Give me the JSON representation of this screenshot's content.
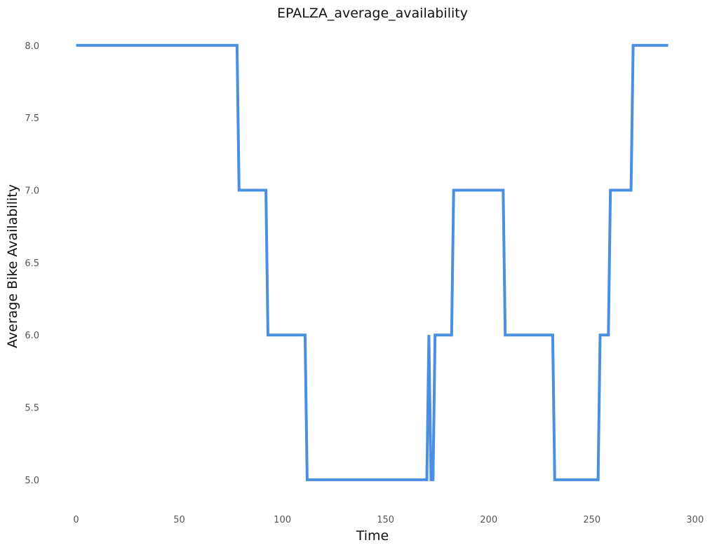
{
  "chart_data": {
    "type": "line",
    "title": "EPALZA_average_availability",
    "xlabel": "Time",
    "ylabel": "Average Bike Availability",
    "xlim": [
      -9,
      297
    ],
    "ylim": [
      4.84,
      8.12
    ],
    "xticks": [
      0,
      50,
      100,
      150,
      200,
      250,
      300
    ],
    "yticks": [
      5.0,
      5.5,
      6.0,
      6.5,
      7.0,
      7.5,
      8.0
    ],
    "grid": false,
    "line_color": "#4a8fe0",
    "series": [
      {
        "x": [
          0,
          78,
          79,
          92,
          93,
          111,
          112,
          170,
          171,
          172,
          173,
          174,
          182,
          183,
          207,
          208,
          231,
          232,
          253,
          254,
          258,
          259,
          269,
          270,
          287
        ],
        "y": [
          8,
          8,
          7,
          7,
          6,
          6,
          5,
          5,
          6,
          5,
          5,
          6,
          6,
          7,
          7,
          6,
          6,
          5,
          5,
          6,
          6,
          7,
          7,
          8,
          8
        ]
      }
    ]
  }
}
